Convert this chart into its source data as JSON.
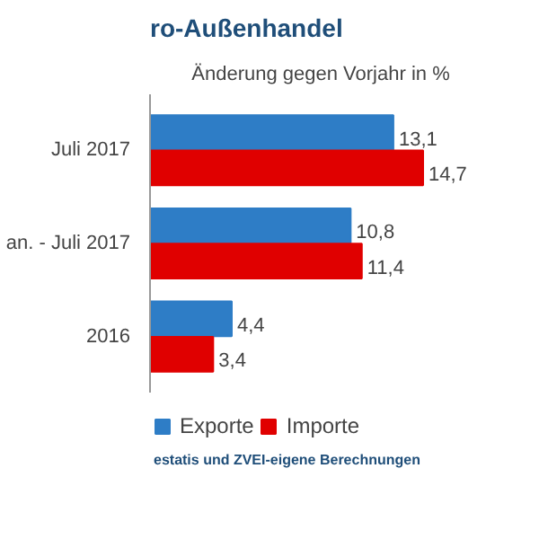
{
  "chart_data": {
    "type": "bar",
    "orientation": "horizontal",
    "title": "ro-Außenhandel",
    "xlabel": "Änderung gegen Vorjahr in %",
    "categories": [
      "Juli 2017",
      "an. - Juli 2017",
      "2016"
    ],
    "series": [
      {
        "name": "Exporte",
        "color": "#2e7dc6",
        "values": [
          13.1,
          10.8,
          4.4
        ],
        "value_labels": [
          "13,1",
          "10,8",
          "4,4"
        ]
      },
      {
        "name": "Importe",
        "color": "#e00000",
        "values": [
          14.7,
          11.4,
          3.4
        ],
        "value_labels": [
          "14,7",
          "11,4",
          "3,4"
        ]
      }
    ],
    "legend": "bottom",
    "grid": false,
    "annotations": [
      "estatis und ZVEI-eigene Berechnungen"
    ]
  }
}
